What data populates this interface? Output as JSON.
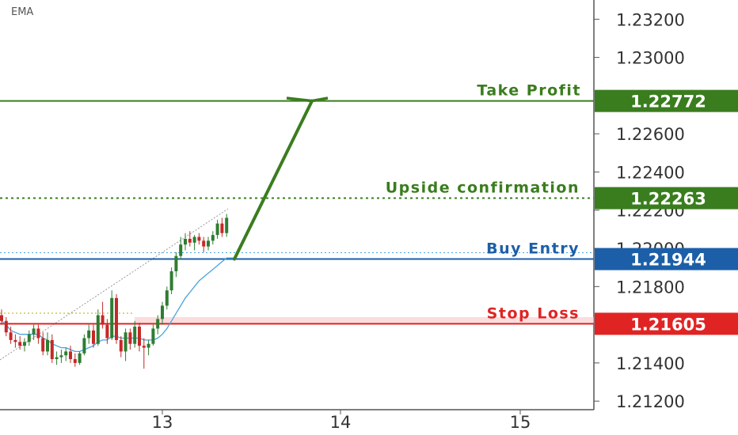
{
  "indicator_label": "EMA",
  "colors": {
    "take_profit": "#3a7d1e",
    "confirmation": "#3a7d1e",
    "buy_entry": "#1c5fa8",
    "stop_loss": "#e02424",
    "stop_zone": "#f6c6c6",
    "candle_up": "#2e7d32",
    "candle_down": "#c62828",
    "ema": "#4aa3df",
    "arrow": "#3a7d1e",
    "trend": "#999999"
  },
  "chart_data": {
    "type": "candlestick",
    "x_axis": {
      "ticks": [
        "13",
        "14",
        "15"
      ]
    },
    "y_axis": {
      "ticks": [
        "1.23200",
        "1.23000",
        "1.22600",
        "1.22400",
        "1.22200",
        "1.22000",
        "1.21800",
        "1.21400",
        "1.21200"
      ],
      "range": [
        1.2118,
        1.2328
      ]
    },
    "levels": [
      {
        "name": "Take Profit",
        "value": 1.22772,
        "badge": "1.22772",
        "style": "solid",
        "color_key": "take_profit"
      },
      {
        "name": "Upside confirmation",
        "value": 1.22263,
        "badge": "1.22263",
        "style": "dotted",
        "color_key": "confirmation"
      },
      {
        "name": "Buy Entry",
        "value": 1.21944,
        "badge": "1.21944",
        "style": "solid",
        "color_key": "buy_entry"
      },
      {
        "name": "Stop Loss",
        "value": 1.21605,
        "badge": "1.21605",
        "style": "solid",
        "color_key": "stop_loss"
      }
    ],
    "candles": [
      [
        1.2165,
        1.2168,
        1.216,
        1.2162
      ],
      [
        1.2162,
        1.2164,
        1.2154,
        1.2156
      ],
      [
        1.2156,
        1.2159,
        1.215,
        1.2152
      ],
      [
        1.2152,
        1.2155,
        1.2148,
        1.2151
      ],
      [
        1.2151,
        1.2154,
        1.2147,
        1.2149
      ],
      [
        1.2149,
        1.2153,
        1.2146,
        1.2151
      ],
      [
        1.2151,
        1.2157,
        1.2149,
        1.2155
      ],
      [
        1.2155,
        1.216,
        1.2152,
        1.2158
      ],
      [
        1.2158,
        1.216,
        1.215,
        1.2153
      ],
      [
        1.2153,
        1.2156,
        1.2144,
        1.2146
      ],
      [
        1.2146,
        1.2156,
        1.2144,
        1.2152
      ],
      [
        1.2152,
        1.2155,
        1.214,
        1.2142
      ],
      [
        1.2142,
        1.2146,
        1.2139,
        1.2143
      ],
      [
        1.2143,
        1.2147,
        1.214,
        1.2144
      ],
      [
        1.2144,
        1.2148,
        1.2141,
        1.2146
      ],
      [
        1.2146,
        1.2149,
        1.214,
        1.2142
      ],
      [
        1.2142,
        1.2145,
        1.2138,
        1.214
      ],
      [
        1.214,
        1.2146,
        1.2139,
        1.2145
      ],
      [
        1.2145,
        1.2155,
        1.2144,
        1.2153
      ],
      [
        1.2153,
        1.216,
        1.215,
        1.2157
      ],
      [
        1.2157,
        1.216,
        1.2148,
        1.215
      ],
      [
        1.215,
        1.2168,
        1.2149,
        1.2165
      ],
      [
        1.2165,
        1.2172,
        1.2158,
        1.216
      ],
      [
        1.216,
        1.2163,
        1.215,
        1.2153
      ],
      [
        1.2153,
        1.2178,
        1.2152,
        1.2174
      ],
      [
        1.2174,
        1.2176,
        1.215,
        1.2152
      ],
      [
        1.2152,
        1.2154,
        1.2143,
        1.2146
      ],
      [
        1.2146,
        1.2158,
        1.2141,
        1.2156
      ],
      [
        1.2156,
        1.2158,
        1.2147,
        1.215
      ],
      [
        1.215,
        1.2162,
        1.2148,
        1.2159
      ],
      [
        1.2159,
        1.2161,
        1.2146,
        1.2149
      ],
      [
        1.2149,
        1.2153,
        1.2137,
        1.2148
      ],
      [
        1.2148,
        1.2152,
        1.2144,
        1.215
      ],
      [
        1.215,
        1.216,
        1.2149,
        1.2158
      ],
      [
        1.2158,
        1.2165,
        1.2155,
        1.2163
      ],
      [
        1.2163,
        1.2172,
        1.216,
        1.217
      ],
      [
        1.217,
        1.218,
        1.2168,
        1.2178
      ],
      [
        1.2178,
        1.219,
        1.2176,
        1.2188
      ],
      [
        1.2188,
        1.2198,
        1.2185,
        1.2196
      ],
      [
        1.2196,
        1.2206,
        1.2194,
        1.2202
      ],
      [
        1.2202,
        1.2208,
        1.2199,
        1.2205
      ],
      [
        1.2205,
        1.2209,
        1.2201,
        1.2203
      ],
      [
        1.2203,
        1.2207,
        1.2199,
        1.2206
      ],
      [
        1.2206,
        1.2208,
        1.2202,
        1.2204
      ],
      [
        1.2204,
        1.2206,
        1.2198,
        1.2201
      ],
      [
        1.2201,
        1.2206,
        1.2199,
        1.2204
      ],
      [
        1.2204,
        1.2209,
        1.2202,
        1.2207
      ],
      [
        1.2207,
        1.2215,
        1.2205,
        1.2213
      ],
      [
        1.2213,
        1.2216,
        1.2206,
        1.2208
      ],
      [
        1.2208,
        1.2218,
        1.2206,
        1.2216
      ]
    ],
    "ema": [
      1.2162,
      1.216,
      1.2157,
      1.2156,
      1.2155,
      1.2155,
      1.2155,
      1.2155,
      1.2155,
      1.2153,
      1.2152,
      1.215,
      1.2149,
      1.2148,
      1.2148,
      1.2147,
      1.2146,
      1.2146,
      1.2147,
      1.2148,
      1.2149,
      1.2151,
      1.2152,
      1.2152,
      1.2154,
      1.2154,
      1.2153,
      1.2153,
      1.2153,
      1.2153,
      1.2153,
      1.2152,
      1.2152,
      1.2152,
      1.2153,
      1.2155,
      1.2158,
      1.2162,
      1.2166,
      1.217,
      1.2174,
      1.2177,
      1.218,
      1.2183,
      1.2185,
      1.2187,
      1.2189,
      1.2191,
      1.2193,
      1.2195
    ]
  }
}
